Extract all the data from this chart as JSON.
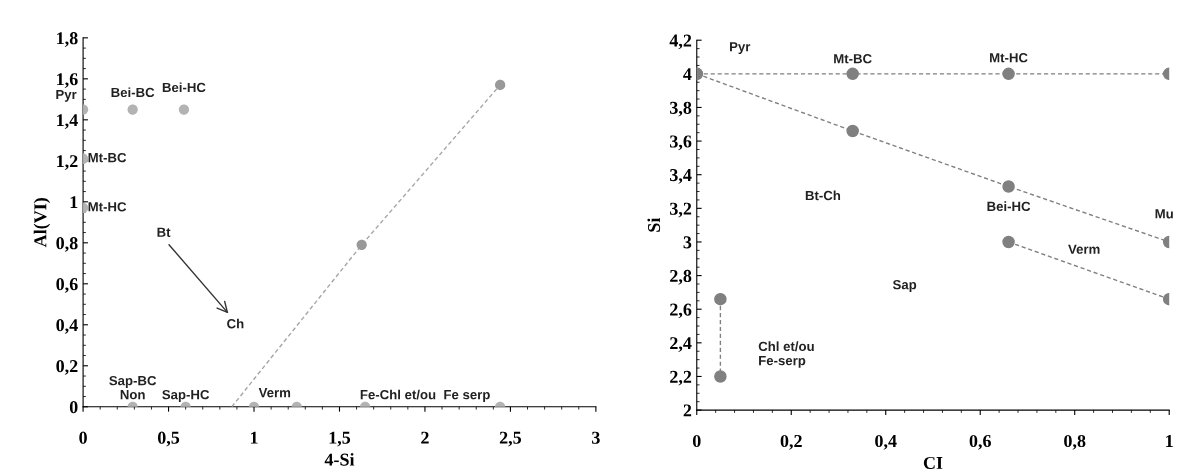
{
  "chart_data": [
    {
      "type": "scatter",
      "xlabel": "4-Si",
      "ylabel": "Al(VI)",
      "xlim": [
        0,
        3
      ],
      "ylim": [
        0,
        1.8
      ],
      "xticks": [
        0,
        {
          "value": 0.5,
          "label": "0,5"
        },
        1,
        {
          "value": 1.5,
          "label": "1,5"
        },
        2,
        {
          "value": 2.5,
          "label": "2,5"
        },
        3
      ],
      "yticks": [
        0,
        {
          "value": 0.2,
          "label": "0,2"
        },
        {
          "value": 0.4,
          "label": "0,4"
        },
        {
          "value": 0.6,
          "label": "0,6"
        },
        {
          "value": 0.8,
          "label": "0,8"
        },
        1,
        {
          "value": 1.2,
          "label": "1,2"
        },
        {
          "value": 1.4,
          "label": "1,4"
        },
        {
          "value": 1.6,
          "label": "1,6"
        },
        {
          "value": 1.8,
          "label": "1,8"
        }
      ],
      "grid": false,
      "legend": false,
      "series": [
        {
          "type": "line",
          "color": "#a6a6a6",
          "marker": "none",
          "line_style": "dashed",
          "x": [
            0.87,
            1.63,
            2.44
          ],
          "values": [
            0,
            0.79,
            1.57
          ]
        },
        {
          "type": "scatter",
          "color": "#b3b3b3",
          "marker": "circle",
          "x": [
            0,
            0.29,
            0.59,
            0,
            0,
            0.29,
            0.6,
            1,
            1.25,
            1.65,
            2.44
          ],
          "values": [
            1.45,
            1.45,
            1.45,
            1.21,
            0.97,
            0,
            0,
            0,
            0,
            0,
            0
          ]
        },
        {
          "type": "scatter",
          "color": "#999999",
          "marker": "circle",
          "x": [
            1.63,
            2.44
          ],
          "values": [
            0.79,
            1.57
          ]
        }
      ],
      "annotations": [
        {
          "text": "Pyr",
          "x": 0,
          "y": 1.45
        },
        {
          "text": "Bei-BC",
          "x": 0.29,
          "y": 1.45
        },
        {
          "text": "Bei-HC",
          "x": 0.59,
          "y": 1.45
        },
        {
          "text": "Mt-BC",
          "x": 0,
          "y": 1.21
        },
        {
          "text": "Mt-HC",
          "x": 0,
          "y": 0.97
        },
        "Bt",
        "Ch",
        {
          "text": "Sap-BC",
          "x": 0.29,
          "y": 0
        },
        {
          "text": "Non",
          "x": 0.29,
          "y": 0
        },
        {
          "text": "Sap-HC",
          "x": 0.6,
          "y": 0
        },
        {
          "text": "Verm",
          "x": 1.25,
          "y": 0
        },
        {
          "text": "Fe-Chl et/ou  Fe serp",
          "x": 1.65,
          "y": 0
        }
      ]
    },
    {
      "type": "line",
      "xlabel": "CI",
      "ylabel": "Si",
      "xlim": [
        0,
        1
      ],
      "ylim": [
        2,
        4.2
      ],
      "xticks": [
        0,
        {
          "value": 0.2,
          "label": "0,2"
        },
        {
          "value": 0.4,
          "label": "0,4"
        },
        {
          "value": 0.6,
          "label": "0,6"
        },
        {
          "value": 0.8,
          "label": "0,8"
        },
        1
      ],
      "yticks": [
        2,
        {
          "value": 2.2,
          "label": "2,2"
        },
        {
          "value": 2.4,
          "label": "2,4"
        },
        {
          "value": 2.6,
          "label": "2,6"
        },
        {
          "value": 2.8,
          "label": "2,8"
        },
        3,
        {
          "value": 3.2,
          "label": "3,2"
        },
        {
          "value": 3.4,
          "label": "3,4"
        },
        {
          "value": 3.6,
          "label": "3,6"
        },
        {
          "value": 3.8,
          "label": "3,8"
        },
        4,
        {
          "value": 4.2,
          "label": "4,2"
        }
      ],
      "grid": false,
      "legend": false,
      "series": [
        {
          "color": "#808080",
          "marker": "circle",
          "line_style": "dashed",
          "x": [
            0,
            0.33,
            0.66,
            1
          ],
          "values": [
            4,
            4,
            4,
            4
          ]
        },
        {
          "color": "#808080",
          "marker": "circle",
          "line_style": "dashed",
          "x": [
            0,
            0.33,
            0.66,
            1
          ],
          "values": [
            4,
            3.66,
            3.33,
            3
          ]
        },
        {
          "color": "#808080",
          "marker": "circle",
          "line_style": "dashed",
          "x": [
            0.66,
            1
          ],
          "values": [
            3,
            2.66
          ]
        },
        {
          "color": "#808080",
          "marker": "circle",
          "line_style": "dashed",
          "x": [
            0.05,
            0.05
          ],
          "values": [
            2.66,
            2.2
          ]
        }
      ],
      "annotations": [
        {
          "text": "Pyr",
          "x": 0,
          "y": 4
        },
        {
          "text": "Mt-BC",
          "x": 0.33,
          "y": 4
        },
        {
          "text": "Mt-HC",
          "x": 0.66,
          "y": 4
        },
        "Bt-Ch",
        {
          "text": "Bei-HC",
          "x": 0.66,
          "y": 3.33
        },
        {
          "text": "Mu",
          "x": 1,
          "y": 3
        },
        "Verm",
        "Sap",
        "Chl et/ou\nFe-serp"
      ]
    }
  ]
}
